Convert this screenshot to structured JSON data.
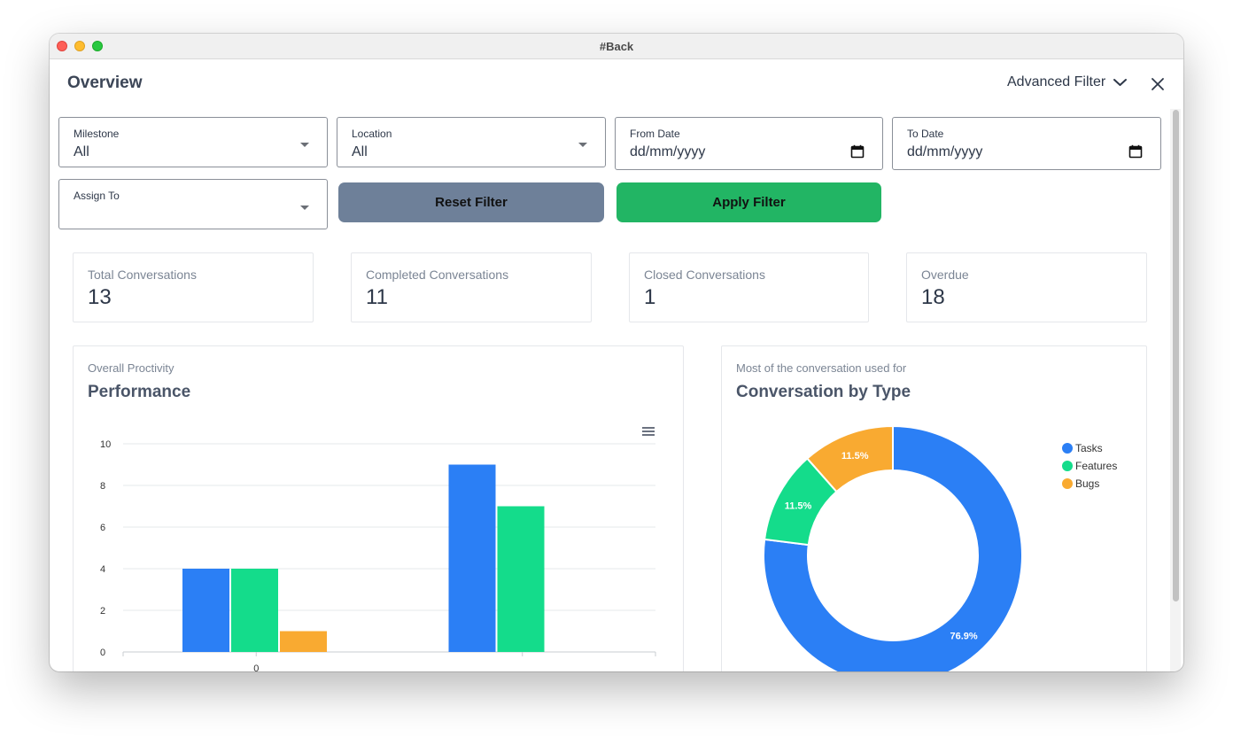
{
  "window": {
    "title": "#Back"
  },
  "header": {
    "title": "Overview",
    "advanced_filter_label": "Advanced Filter"
  },
  "filters": {
    "milestone": {
      "label": "Milestone",
      "value": "All"
    },
    "location": {
      "label": "Location",
      "value": "All"
    },
    "from_date": {
      "label": "From Date",
      "placeholder": "dd/mm/yyyy"
    },
    "to_date": {
      "label": "To Date",
      "placeholder": "dd/mm/yyyy"
    },
    "assign_to": {
      "label": "Assign To",
      "value": ""
    },
    "reset_label": "Reset Filter",
    "apply_label": "Apply Filter"
  },
  "stats": [
    {
      "label": "Total Conversations",
      "value": "13"
    },
    {
      "label": "Completed Conversations",
      "value": "11"
    },
    {
      "label": "Closed Conversations",
      "value": "1"
    },
    {
      "label": "Overdue",
      "value": "18"
    }
  ],
  "performance": {
    "subtitle": "Overall Proctivity",
    "title": "Performance"
  },
  "conversation_type": {
    "subtitle": "Most of the conversation used for",
    "title": "Conversation by Type"
  },
  "colors": {
    "blue": "#2b7ff5",
    "green": "#14dc8b",
    "orange": "#f9aa31",
    "reset_button": "#6e8099",
    "apply_button": "#22b564"
  },
  "icons": {
    "menu": "hamburger-menu-icon",
    "close": "close-icon",
    "chevron": "chevron-down-icon",
    "calendar": "calendar-icon"
  },
  "chart_data": [
    {
      "type": "bar",
      "categories": [
        "0",
        ""
      ],
      "series": [
        {
          "color": "#2b7ff5",
          "values": [
            4,
            9
          ]
        },
        {
          "color": "#14dc8b",
          "values": [
            4,
            7
          ]
        },
        {
          "color": "#f9aa31",
          "values": [
            1,
            0
          ]
        }
      ],
      "yticks": [
        "0",
        "2",
        "4",
        "6",
        "8",
        "10"
      ],
      "ylim": [
        0,
        10
      ],
      "grid": true
    },
    {
      "type": "pie",
      "donut": true,
      "slices": [
        {
          "name": "Tasks",
          "value": 76.9,
          "label": "76.9%",
          "color": "#2b7ff5"
        },
        {
          "name": "Features",
          "value": 11.5,
          "label": "11.5%",
          "color": "#14dc8b"
        },
        {
          "name": "Bugs",
          "value": 11.5,
          "label": "11.5%",
          "color": "#f9aa31"
        }
      ],
      "legend": "top-right"
    }
  ]
}
